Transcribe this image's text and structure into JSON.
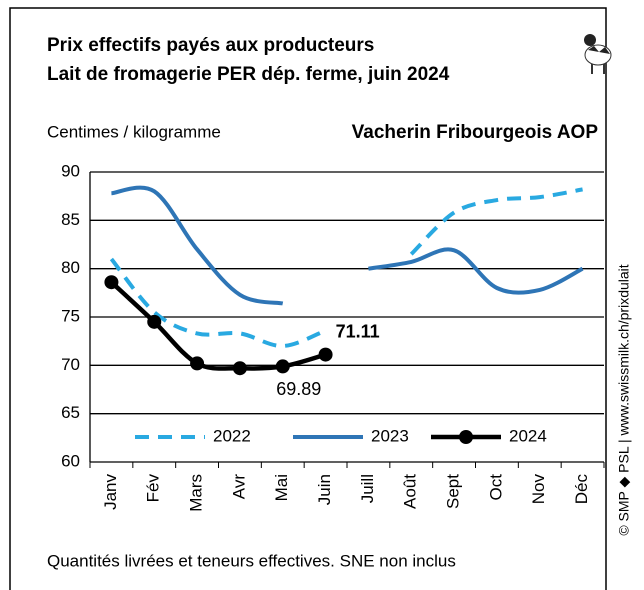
{
  "chart_data": {
    "type": "line",
    "title": "Prix effectifs payés aux producteurs",
    "subtitle": "Lait de fromagerie PER dép. ferme, juin 2024",
    "y_label": "Centimes / kilogramme",
    "product": "Vacherin Fribourgeois AOP",
    "note": "Quantités livrées et teneurs effectives. SNE non inclus",
    "source": "© SMP ◆ PSL | www.swissmilk.ch/prixdulait",
    "categories": [
      "Janv",
      "Fév",
      "Mars",
      "Avr",
      "Mai",
      "Juin",
      "Juill",
      "Août",
      "Sept",
      "Oct",
      "Nov",
      "Déc"
    ],
    "series": [
      {
        "name": "2022",
        "color": "#29a9e1",
        "style": "dashed",
        "values": [
          81.0,
          75.5,
          73.3,
          73.3,
          72.0,
          73.6,
          null,
          81.5,
          85.8,
          87.1,
          87.4,
          88.2
        ]
      },
      {
        "name": "2023",
        "color": "#2e75b6",
        "style": "solid",
        "values": [
          87.8,
          88.0,
          82.0,
          77.3,
          76.4,
          null,
          80.0,
          80.7,
          81.9,
          78.0,
          77.8,
          80.0
        ]
      },
      {
        "name": "2024",
        "color": "#000000",
        "style": "markers",
        "values": [
          78.6,
          74.5,
          70.2,
          69.7,
          69.89,
          71.11,
          null,
          null,
          null,
          null,
          null,
          null
        ],
        "value_labels": [
          null,
          null,
          null,
          null,
          "69.89",
          "71.11",
          null,
          null,
          null,
          null,
          null,
          null
        ]
      }
    ],
    "ylim": [
      60,
      90
    ],
    "yticks": [
      60,
      65,
      70,
      75,
      80,
      85,
      90
    ],
    "grid": true
  }
}
